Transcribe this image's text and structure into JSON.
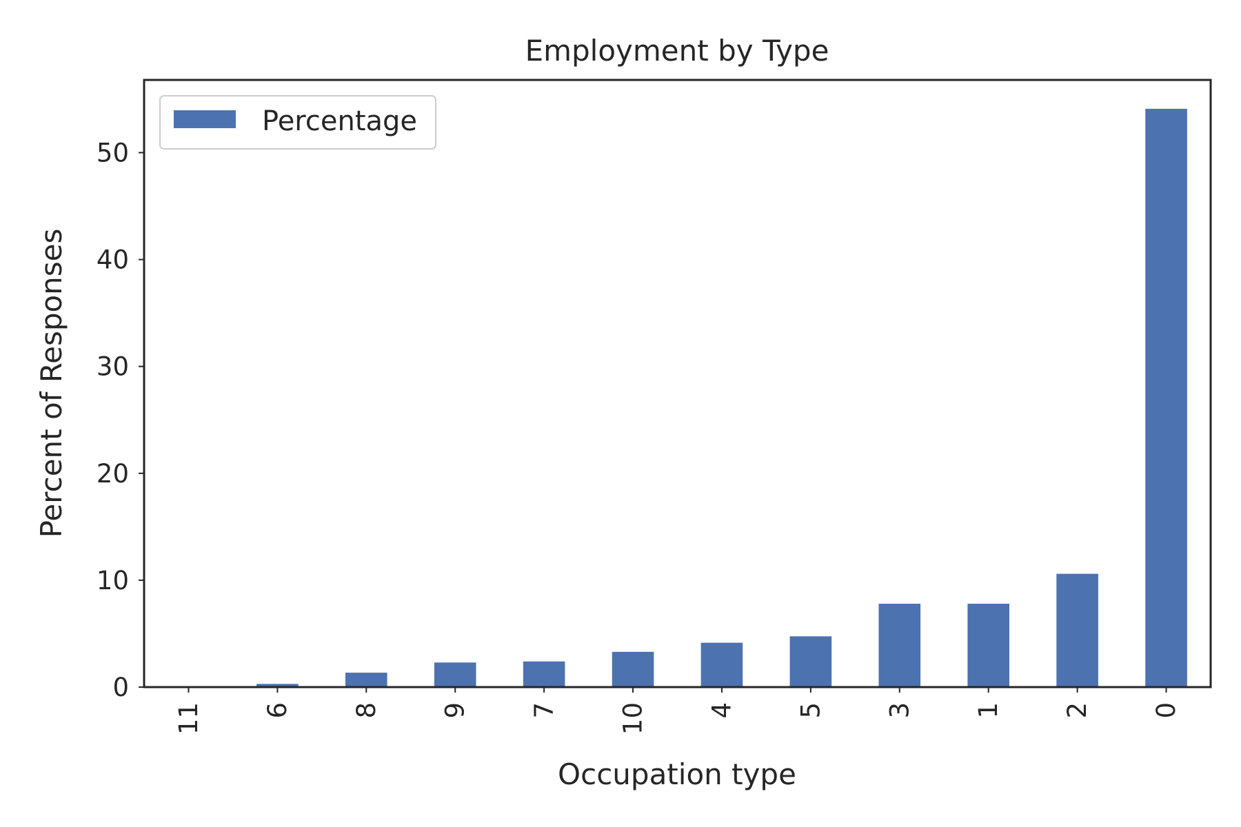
{
  "chart_data": {
    "type": "bar",
    "title": "Employment by Type",
    "xlabel": "Occupation type",
    "ylabel": "Percent of Responses",
    "categories": [
      "11",
      "6",
      "8",
      "9",
      "7",
      "10",
      "4",
      "5",
      "3",
      "1",
      "2",
      "0"
    ],
    "series": [
      {
        "name": "Percentage",
        "color": "#4c72b0",
        "values": [
          0.05,
          0.3,
          1.35,
          2.3,
          2.4,
          3.3,
          4.15,
          4.75,
          7.8,
          7.8,
          10.6,
          54.1
        ]
      }
    ],
    "ylim": [
      0,
      56.8
    ],
    "yticks": [
      0,
      10,
      20,
      30,
      40,
      50
    ],
    "grid": false,
    "legend": "top-left"
  }
}
